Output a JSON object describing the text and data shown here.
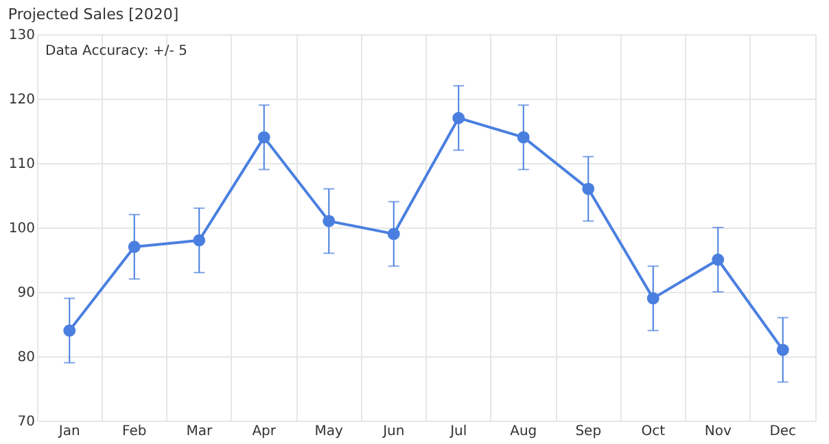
{
  "chart_data": {
    "type": "line",
    "title": "Projected Sales [2020]",
    "annotations": [
      "Data Accuracy: +/- 5"
    ],
    "categories": [
      "Jan",
      "Feb",
      "Mar",
      "Apr",
      "May",
      "Jun",
      "Jul",
      "Aug",
      "Sep",
      "Oct",
      "Nov",
      "Dec"
    ],
    "series": [
      {
        "color": "#4a7fe0",
        "values": [
          84,
          97,
          98,
          114,
          101,
          99,
          117,
          114,
          106,
          89,
          95,
          81
        ],
        "errors": [
          5,
          5,
          5,
          5,
          5,
          5,
          5,
          5,
          5,
          5,
          5,
          5
        ]
      }
    ],
    "ylim": [
      70,
      130
    ],
    "yticks": [
      70,
      80,
      90,
      100,
      110,
      120,
      130
    ],
    "grid": true,
    "marker": "circle",
    "line_style": "solid"
  }
}
